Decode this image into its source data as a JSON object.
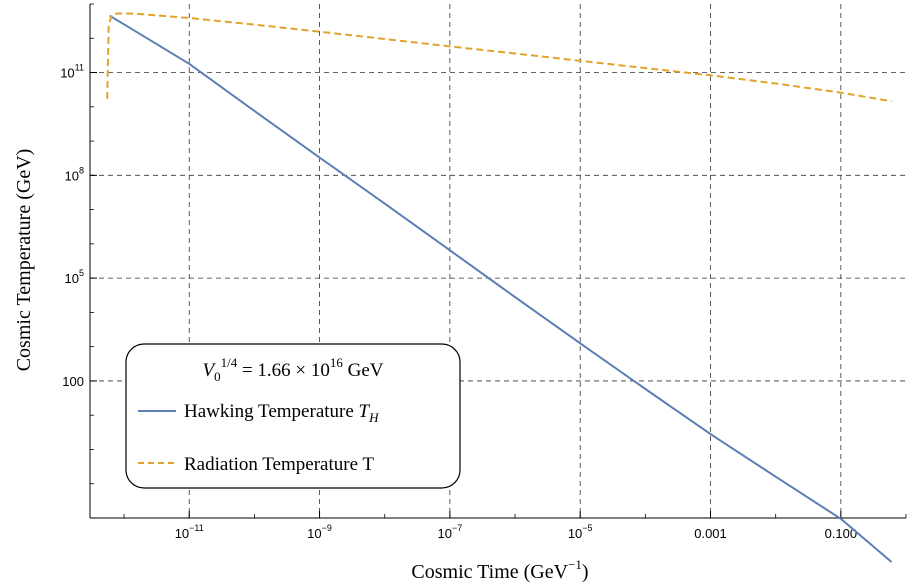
{
  "chart_data": {
    "type": "line",
    "xlabel": "Cosmic Time (GeV",
    "xlabel_sup": "−1",
    "xlabel_close": ")",
    "ylabel": "Cosmic Temperature (GeV)",
    "x_scale": "log",
    "y_scale": "log",
    "xlim": [
      3e-13,
      1
    ],
    "ylim": [
      0.01,
      10000000000000.0
    ],
    "grid": true,
    "grid_style": "dashed",
    "x_ticks": [
      {
        "value": 1e-11,
        "base": "10",
        "exp": "−11"
      },
      {
        "value": 1e-09,
        "base": "10",
        "exp": "−9"
      },
      {
        "value": 1e-07,
        "base": "10",
        "exp": "−7"
      },
      {
        "value": 1e-05,
        "base": "10",
        "exp": "−5"
      },
      {
        "value": 0.001,
        "base": "0.001",
        "exp": ""
      },
      {
        "value": 0.1,
        "base": "0.100",
        "exp": ""
      }
    ],
    "y_ticks": [
      {
        "value": 100,
        "base": "100",
        "exp": ""
      },
      {
        "value": 100000.0,
        "base": "10",
        "exp": "5"
      },
      {
        "value": 100000000.0,
        "base": "10",
        "exp": "8"
      },
      {
        "value": 100000000000.0,
        "base": "10",
        "exp": "11"
      }
    ],
    "legend": {
      "placement": "lower-left",
      "title_var": "V",
      "title_sub": "0",
      "title_sup": "1/4",
      "title_rest": " = 1.66 × 10",
      "title_exp": "16",
      "title_unit": " GeV"
    },
    "series": [
      {
        "name": "Hawking Temperature ",
        "name_var": "T",
        "name_sub": "H",
        "color": "#5b7fb5",
        "dash": "solid",
        "points": [
          [
            6e-13,
            4600000000000.0
          ],
          [
            1e-11,
            180000000000.0
          ],
          [
            1e-10,
            7600000000.0
          ],
          [
            1e-09,
            330000000.0
          ],
          [
            1e-08,
            15000000.0
          ],
          [
            1e-07,
            650000.0
          ],
          [
            1e-06,
            28000.0
          ],
          [
            1e-05,
            1250.0
          ],
          [
            0.0001,
            58
          ],
          [
            0.001,
            2.8
          ],
          [
            0.01,
            0.16
          ],
          [
            0.1,
            0.0095
          ],
          [
            0.6,
            0.00052
          ]
        ]
      },
      {
        "name": "Radiation Temperature T",
        "color": "#e2a32c",
        "dash": "dashed",
        "points": [
          [
            5.5e-13,
            17000000000.0
          ],
          [
            5.8e-13,
            2500000000000.0
          ],
          [
            6.5e-13,
            4800000000000.0
          ],
          [
            8e-13,
            5300000000000.0
          ],
          [
            1.5e-12,
            5200000000000.0
          ],
          [
            1e-11,
            3900000000000.0
          ],
          [
            1e-10,
            2500000000000.0
          ],
          [
            1e-09,
            1550000000000.0
          ],
          [
            1e-08,
            950000000000.0
          ],
          [
            1e-07,
            580000000000.0
          ],
          [
            1e-06,
            360000000000.0
          ],
          [
            1e-05,
            220000000000.0
          ],
          [
            0.0001,
            135000000000.0
          ],
          [
            0.001,
            83000000000.0
          ],
          [
            0.01,
            48000000000.0
          ],
          [
            0.1,
            26000000000.0
          ],
          [
            0.6,
            14500000000.0
          ]
        ]
      }
    ]
  }
}
